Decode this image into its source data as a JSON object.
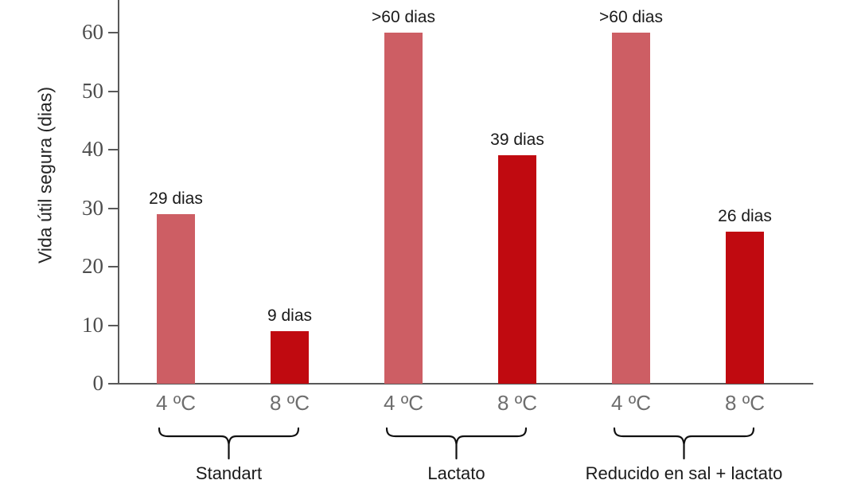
{
  "chart_data": {
    "type": "bar",
    "title": "",
    "ylabel": "Vida útil segura (dias)",
    "xlabel": "",
    "ylim": [
      0,
      65.5
    ],
    "yticks": [
      0,
      10,
      20,
      30,
      40,
      50,
      60
    ],
    "grid": false,
    "legend": "none",
    "groups": [
      {
        "label": "Standart",
        "bars": [
          {
            "category": "4 ºC",
            "value": 29,
            "annotation": "29 dias"
          },
          {
            "category": "8 ºC",
            "value": 9,
            "annotation": "9 dias"
          }
        ]
      },
      {
        "label": "Lactato",
        "bars": [
          {
            "category": "4 ºC",
            "value": 60,
            "annotation": ">60 dias"
          },
          {
            "category": "8 ºC",
            "value": 39,
            "annotation": "39 dias"
          }
        ]
      },
      {
        "label": "Reducido en sal + lactato",
        "bars": [
          {
            "category": "4 ºC",
            "value": 60,
            "annotation": ">60 dias"
          },
          {
            "category": "8 ºC",
            "value": 26,
            "annotation": "26 dias"
          }
        ]
      }
    ],
    "colors": {
      "bar_4c": "#cd5e64",
      "bar_8c": "#c00a10",
      "axis": "#595959",
      "tick_label": "#4d4d4d",
      "category_label": "#6e6e6e",
      "annotation": "#1a1a1a",
      "group_label": "#1a1a1a",
      "brace": "#111111",
      "background": "#ffffff"
    }
  }
}
